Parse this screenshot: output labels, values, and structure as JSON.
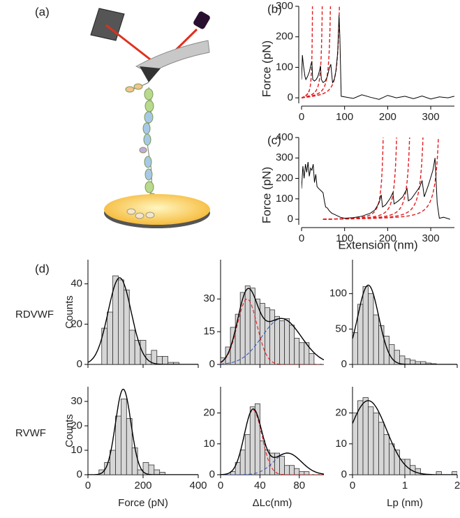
{
  "illustration": {
    "label": "(a)"
  },
  "chart_data": [
    {
      "type": "line",
      "label": "(b)",
      "ylabel": "Force (pN)",
      "xlim": [
        0,
        355
      ],
      "ylim": [
        -18,
        300
      ],
      "xticks": [
        0,
        100,
        200,
        300
      ],
      "yticks": [
        0,
        100,
        200,
        300
      ],
      "series": [
        {
          "color": "#000000",
          "x": [
            0,
            2,
            4,
            6,
            8,
            10,
            14,
            18,
            22,
            24,
            26,
            30,
            34,
            38,
            42,
            44,
            46,
            50,
            55,
            60,
            64,
            68,
            72,
            76,
            80,
            84,
            87,
            89,
            92,
            100,
            120,
            140,
            160,
            180,
            200,
            220,
            240,
            260,
            280,
            300,
            320,
            340,
            355
          ],
          "values": [
            60,
            140,
            110,
            90,
            70,
            60,
            70,
            85,
            110,
            120,
            60,
            55,
            60,
            70,
            90,
            105,
            60,
            50,
            55,
            70,
            95,
            110,
            50,
            60,
            90,
            150,
            270,
            200,
            5,
            3,
            -2,
            10,
            2,
            -5,
            8,
            0,
            5,
            -3,
            6,
            -4,
            3,
            0,
            5
          ]
        }
      ],
      "fits": {
        "color": "#e41a1c",
        "kT": 4.11,
        "persistence_length": 0.4,
        "x_offset": 0,
        "contour_lengths": [
          28,
          53,
          74,
          97
        ]
      }
    },
    {
      "type": "line",
      "label": "(c)",
      "ylabel": "Force (pN)",
      "xlabel": "Extension (nm)",
      "xlim": [
        0,
        355
      ],
      "ylim": [
        -27,
        400
      ],
      "xticks": [
        0,
        100,
        200,
        300
      ],
      "yticks": [
        0,
        100,
        200,
        300,
        400
      ],
      "series": [
        {
          "color": "#000000",
          "x": [
            0,
            3,
            6,
            9,
            12,
            15,
            18,
            21,
            24,
            27,
            30,
            33,
            36,
            40,
            45,
            50,
            53,
            56,
            60,
            65,
            70,
            80,
            90,
            100,
            120,
            140,
            160,
            170,
            180,
            185,
            188,
            195,
            205,
            212,
            215,
            225,
            235,
            245,
            248,
            255,
            265,
            275,
            280,
            285,
            295,
            305,
            310,
            315,
            320,
            330,
            345
          ],
          "values": [
            150,
            260,
            200,
            270,
            230,
            280,
            210,
            250,
            240,
            270,
            180,
            220,
            160,
            150,
            140,
            130,
            90,
            60,
            55,
            40,
            30,
            20,
            10,
            5,
            8,
            15,
            30,
            45,
            80,
            120,
            60,
            70,
            100,
            130,
            75,
            90,
            110,
            150,
            90,
            100,
            130,
            160,
            190,
            110,
            170,
            240,
            300,
            80,
            5,
            10,
            0
          ]
        }
      ],
      "fits": {
        "color": "#e41a1c",
        "kT": 4.11,
        "persistence_length": 0.8,
        "x_offset": 50,
        "contour_lengths": [
          148,
          181,
          213,
          246,
          284
        ]
      }
    },
    {
      "type": "histogram",
      "label": "(d)",
      "row_label": "RDVWF",
      "ylabel": "Counts",
      "xtick_labels": false,
      "xlim": [
        0,
        400
      ],
      "ylim": [
        0,
        52
      ],
      "xticks": [
        0,
        200,
        400
      ],
      "yticks": [
        0,
        20,
        40
      ],
      "bins": [
        50,
        70,
        90,
        110,
        130,
        150,
        170,
        190,
        210,
        230,
        250,
        270,
        290,
        310,
        330
      ],
      "counts": [
        18,
        26,
        44,
        42,
        37,
        17,
        12,
        12,
        5,
        7,
        4,
        4,
        1,
        1
      ],
      "fits": [
        {
          "mean": 115,
          "sd": 42,
          "amp": 43,
          "color": "#000000"
        }
      ]
    },
    {
      "type": "histogram",
      "xtick_labels": false,
      "xlim": [
        0,
        105
      ],
      "ylim": [
        0,
        48
      ],
      "xticks": [
        0,
        40,
        80
      ],
      "yticks": [
        0,
        15,
        30
      ],
      "bins": [
        0,
        5,
        10,
        15,
        20,
        25,
        30,
        35,
        40,
        45,
        50,
        55,
        60,
        65,
        70,
        75,
        80,
        85,
        90,
        95
      ],
      "counts": [
        3,
        8,
        17,
        23,
        33,
        36,
        35,
        30,
        28,
        26,
        25,
        22,
        20,
        21,
        18,
        12,
        10,
        10,
        5
      ],
      "fits": [
        {
          "mean": 27,
          "sd": 10,
          "amp": 30,
          "color": "#e41a1c"
        },
        {
          "mean": 62,
          "sd": 20,
          "amp": 21,
          "color": "#3a5bbf"
        }
      ],
      "sum_color": "#000000"
    },
    {
      "type": "histogram",
      "xtick_labels": false,
      "xlim": [
        0,
        2
      ],
      "ylim": [
        0,
        148
      ],
      "xticks": [
        0,
        1,
        2
      ],
      "yticks": [
        0,
        50,
        100
      ],
      "bins": [
        0,
        0.1,
        0.2,
        0.3,
        0.4,
        0.5,
        0.6,
        0.7,
        0.8,
        0.9,
        1,
        1.1,
        1.2,
        1.3,
        1.4,
        1.5,
        1.6
      ],
      "counts": [
        45,
        85,
        110,
        100,
        70,
        55,
        40,
        28,
        20,
        12,
        8,
        6,
        4,
        4,
        2,
        1
      ],
      "fits": [
        {
          "mean": 0.3,
          "sd": 0.2,
          "amp": 112,
          "color": "#000000"
        }
      ]
    },
    {
      "type": "histogram",
      "row_label": "RVWF",
      "ylabel": "Counts",
      "xlabel": "Force (pN)",
      "xlim": [
        0,
        400
      ],
      "ylim": [
        0,
        36
      ],
      "xticks": [
        0,
        200,
        400
      ],
      "yticks": [
        0,
        10,
        20,
        30
      ],
      "bins": [
        40,
        60,
        80,
        100,
        120,
        140,
        160,
        180,
        200,
        220,
        240,
        260,
        280
      ],
      "counts": [
        2,
        5,
        10,
        24,
        31,
        23,
        11,
        2,
        5,
        4,
        2,
        1
      ],
      "fits": [
        {
          "mean": 128,
          "sd": 28,
          "amp": 35,
          "color": "#000000"
        }
      ]
    },
    {
      "type": "histogram",
      "xlabel": "ΔLc(nm)",
      "xlim": [
        0,
        105
      ],
      "ylim": [
        0,
        28.5
      ],
      "xticks": [
        0,
        40,
        80
      ],
      "yticks": [
        0,
        10,
        20
      ],
      "bins": [
        10,
        15,
        20,
        25,
        30,
        35,
        40,
        45,
        50,
        55,
        60,
        65,
        70,
        75,
        80,
        85,
        90
      ],
      "counts": [
        1,
        4,
        8,
        13,
        22,
        23,
        11,
        8,
        7,
        7,
        6,
        3,
        3,
        2,
        1,
        1
      ],
      "fits": [
        {
          "mean": 33,
          "sd": 9,
          "amp": 21,
          "color": "#e41a1c"
        },
        {
          "mean": 68,
          "sd": 14,
          "amp": 7,
          "color": "#3a5bbf"
        }
      ],
      "sum_color": "#000000"
    },
    {
      "type": "histogram",
      "xlabel": "Lp (nm)",
      "xlim": [
        0,
        2
      ],
      "ylim": [
        0,
        28.5
      ],
      "xticks": [
        0,
        1,
        2
      ],
      "yticks": [
        0,
        10,
        20
      ],
      "bins": [
        0,
        0.1,
        0.2,
        0.3,
        0.4,
        0.5,
        0.6,
        0.7,
        0.8,
        0.9,
        1,
        1.1,
        1.2,
        1.3,
        1.4,
        1.5,
        1.6,
        1.7,
        1.8,
        1.9,
        2
      ],
      "counts": [
        20,
        24,
        25,
        22,
        20,
        17,
        13,
        10,
        8,
        5,
        5,
        3,
        2,
        0,
        0,
        0,
        1,
        0,
        0,
        1
      ],
      "fits": [
        {
          "mean": 0.3,
          "sd": 0.35,
          "amp": 24,
          "color": "#000000"
        }
      ]
    }
  ]
}
